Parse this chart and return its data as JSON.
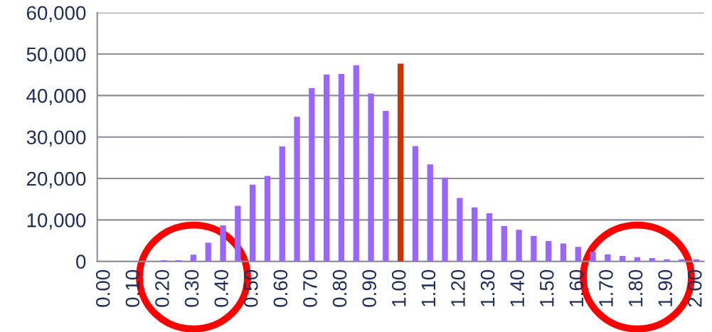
{
  "chart_data": {
    "type": "bar",
    "categories": [
      "0.00",
      null,
      "0.10",
      null,
      "0.20",
      null,
      "0.30",
      null,
      "0.40",
      null,
      "0.50",
      null,
      "0.60",
      null,
      "0.70",
      null,
      "0.80",
      null,
      "0.90",
      null,
      "1.00",
      null,
      "1.10",
      null,
      "1.20",
      null,
      "1.30",
      null,
      "1.40",
      null,
      "1.50",
      null,
      "1.60",
      null,
      "1.70",
      null,
      "1.80",
      null,
      "1.90",
      null,
      "2.00"
    ],
    "values": [
      0,
      0,
      0,
      0,
      300,
      300,
      1600,
      4500,
      8700,
      13400,
      18500,
      20600,
      27700,
      34900,
      41800,
      45100,
      45200,
      47300,
      40500,
      36300,
      47700,
      27800,
      23400,
      20200,
      15300,
      13000,
      11600,
      8500,
      7600,
      6100,
      4900,
      4300,
      3500,
      2300,
      1700,
      1300,
      1000,
      800,
      500,
      500,
      500
    ],
    "colors": [
      "#9966ff",
      "#9966ff",
      "#9966ff",
      "#9966ff",
      "#9966ff",
      "#9966ff",
      "#9966ff",
      "#9966ff",
      "#9966ff",
      "#9966ff",
      "#9966ff",
      "#9966ff",
      "#9966ff",
      "#9966ff",
      "#9966ff",
      "#9966ff",
      "#9966ff",
      "#9966ff",
      "#9966ff",
      "#9966ff",
      "#cc3300",
      "#9966ff",
      "#9966ff",
      "#9966ff",
      "#9966ff",
      "#9966ff",
      "#9966ff",
      "#9966ff",
      "#9966ff",
      "#9966ff",
      "#9966ff",
      "#9966ff",
      "#9966ff",
      "#9966ff",
      "#9966ff",
      "#9966ff",
      "#9966ff",
      "#9966ff",
      "#9966ff",
      "#9966ff",
      "#9966ff"
    ],
    "ylim": [
      0,
      60000
    ],
    "yticks": [
      {
        "value": 0,
        "label": "0"
      },
      {
        "value": 10000,
        "label": "10,000"
      },
      {
        "value": 20000,
        "label": "20,000"
      },
      {
        "value": 30000,
        "label": "30,000"
      },
      {
        "value": 40000,
        "label": "40,000"
      },
      {
        "value": 50000,
        "label": "50,000"
      },
      {
        "value": 60000,
        "label": "60,000"
      }
    ],
    "grid": "y"
  }
}
